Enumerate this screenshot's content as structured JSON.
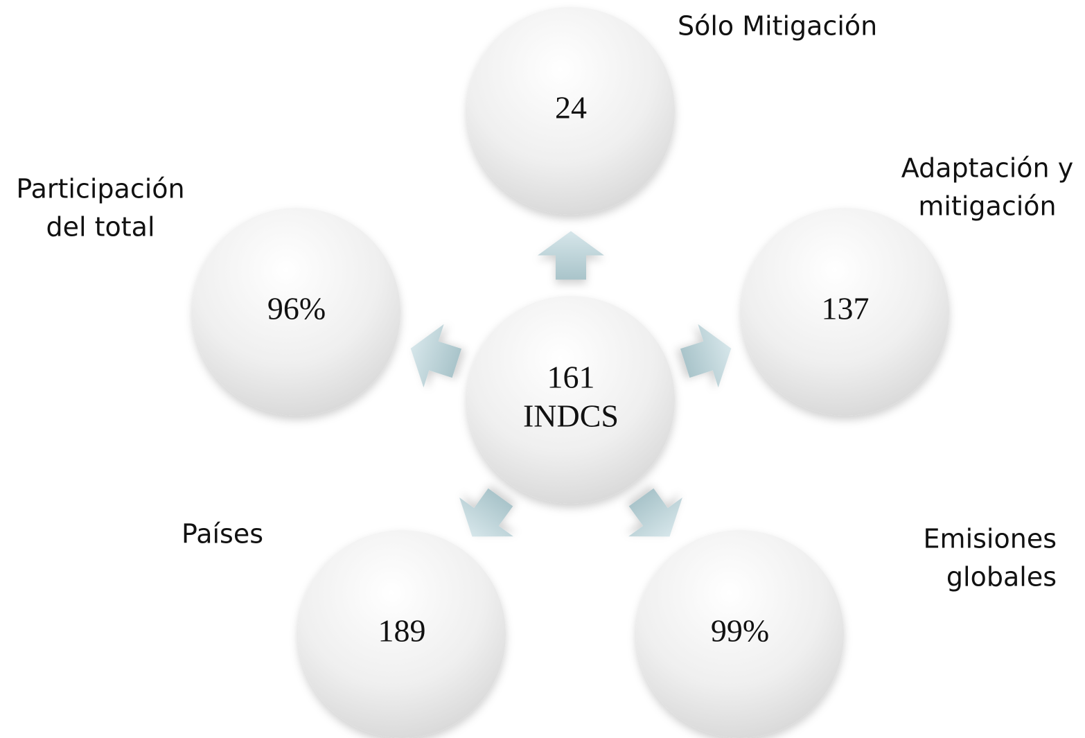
{
  "center": {
    "lines": [
      "161",
      "INDCS"
    ]
  },
  "nodes": [
    {
      "value": "24",
      "label": [
        "Sólo Mitigación"
      ]
    },
    {
      "value": "137",
      "label": [
        "Adaptación y",
        "mitigación"
      ]
    },
    {
      "value": "99%",
      "label": [
        "Emisiones",
        "globales"
      ]
    },
    {
      "value": "189",
      "label": [
        "Países"
      ]
    },
    {
      "value": "96%",
      "label": [
        "Participación",
        "del total"
      ]
    }
  ]
}
